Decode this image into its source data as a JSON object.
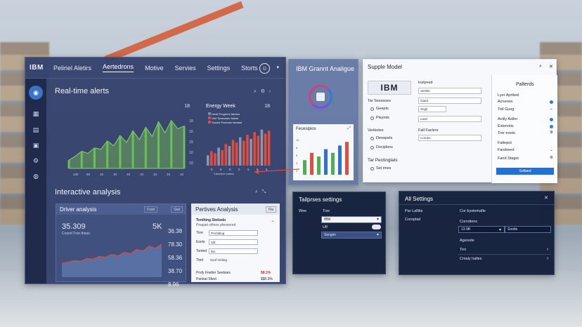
{
  "main": {
    "logo": "IBM",
    "nav": [
      "Peliriel Aletirs",
      "Aertedrons",
      "Motive",
      "Servies",
      "Settings",
      "Storts"
    ],
    "sidebar": [
      "",
      "",
      "",
      "",
      ""
    ],
    "realtime": {
      "title": "Real-time alerts",
      "chart1_value": "18",
      "chart1_yticks": [
        "18",
        "16",
        "15",
        "10",
        "10"
      ],
      "chart1_xticks": [
        "100",
        "50",
        "10",
        "10",
        "10",
        "10",
        "10",
        "10",
        "10"
      ],
      "chart1_values": [
        12,
        18,
        25,
        22,
        30,
        28,
        40,
        33,
        48,
        38,
        55,
        42,
        60,
        47,
        68,
        52,
        70,
        58,
        62
      ],
      "chart2_title": "Energy Week",
      "chart2_value": "18",
      "chart2_legend": [
        "Desti Progeres faessis",
        "Ulet Taneuasiv fathas",
        "Susied Pseanse faestad"
      ],
      "chart2_xticks": [
        "5",
        "5",
        "5",
        "5",
        "5",
        "5",
        "5"
      ],
      "chart2_footer": "Calueipio suttas",
      "chart2_values": [
        20,
        28,
        24,
        35,
        30,
        42,
        38,
        50,
        45,
        55,
        48,
        60,
        52,
        65,
        58,
        70,
        62,
        68
      ]
    },
    "interactive": {
      "title": "Interactive analysis",
      "driver": {
        "title": "Driver analysis",
        "btn1": "Fosti",
        "btn2": "Gwl",
        "value": "35.309",
        "subtitle": "Cound Tron theas",
        "pct": "5K",
        "right_values": [
          "36.38",
          "78.30",
          "58.36",
          "38.70",
          "8.96"
        ],
        "line_values": [
          20,
          22,
          24,
          23,
          27,
          26,
          30,
          29,
          33,
          31,
          36,
          34,
          40,
          38,
          45,
          42,
          48
        ]
      },
      "perf": {
        "title": "Pertives Analysis",
        "btn": "Fla",
        "header1": "Tonthing Stetiedo",
        "header2": "Pnapiet siftons pfesnered",
        "rows": [
          {
            "label": "Tirre",
            "value": "Prortidiog"
          },
          {
            "label": "Esets",
            "value": "Sitt"
          },
          {
            "label": "Tonted",
            "value": "Bin"
          },
          {
            "label": "Tted",
            "value": "Sonf Vinling"
          }
        ],
        "footer1_label": "Prvfy Fnetler Seetsies",
        "footer1_value": "$8.3%",
        "footer2_label": "Parleat Sfeet",
        "footer2_value": "$$5.3%"
      }
    }
  },
  "ibm_ga": {
    "title": "IBM Grannt Analigue",
    "forecast_title": "Fecesipios",
    "yticks": [
      "10",
      "8",
      "6",
      "4",
      "2"
    ],
    "bars": [
      {
        "v": 4,
        "c": "#4caf50"
      },
      {
        "v": 6,
        "c": "#e64a3a"
      },
      {
        "v": 5,
        "c": "#4caf50"
      },
      {
        "v": 7,
        "c": "#2f6fd8"
      },
      {
        "v": 6,
        "c": "#4caf50"
      },
      {
        "v": 8,
        "c": "#2f6fd8"
      },
      {
        "v": 9,
        "c": "#e64a3a"
      }
    ]
  },
  "supplier": {
    "title": "Supple Model",
    "logo": "IBM",
    "labels": {
      "col1": "Inslyned",
      "row_sec": "Tar Sesssoes",
      "opt1": "Geepts",
      "opt2": "Plsyints",
      "sect2": "Verkiotes",
      "opt3": "Deoepels",
      "opt4": "Dsciplons",
      "col_fail": "Fall Faclers",
      "sect3": "Tar Pectinglats",
      "opt5": "Set imes"
    },
    "fields": [
      "Seelits",
      "Gaed",
      "Sngil",
      "Lasd",
      "Lcoues"
    ],
    "right": {
      "title": "Palterds",
      "items": [
        "Lyer Aprtleel",
        "Acnereis",
        "Totl Gusg",
        "Actily Astler",
        "Extenotis",
        "Trer enets",
        "Faltepot",
        "Farobeed",
        "Fand Staget"
      ],
      "button": "Sofiaed"
    }
  },
  "tailp": {
    "title": "Tailprses settings",
    "rows": [
      {
        "label": "Wee",
        "value_label": "Tise"
      },
      {
        "label": "",
        "value_label": ""
      }
    ],
    "field1": "IBM",
    "field2_label": "Ulf",
    "field3": "Sengim"
  },
  "allsettings": {
    "title": "All Settings",
    "left": [
      "Par Lallitis",
      "Coreplad"
    ],
    "right_title": "Cor bystemafie",
    "right_sub": "Corrstiens",
    "field_value": "13.9B",
    "field_right": "Sredis",
    "items": [
      "Agerede",
      "Tirn",
      "Cmaly halles"
    ]
  }
}
